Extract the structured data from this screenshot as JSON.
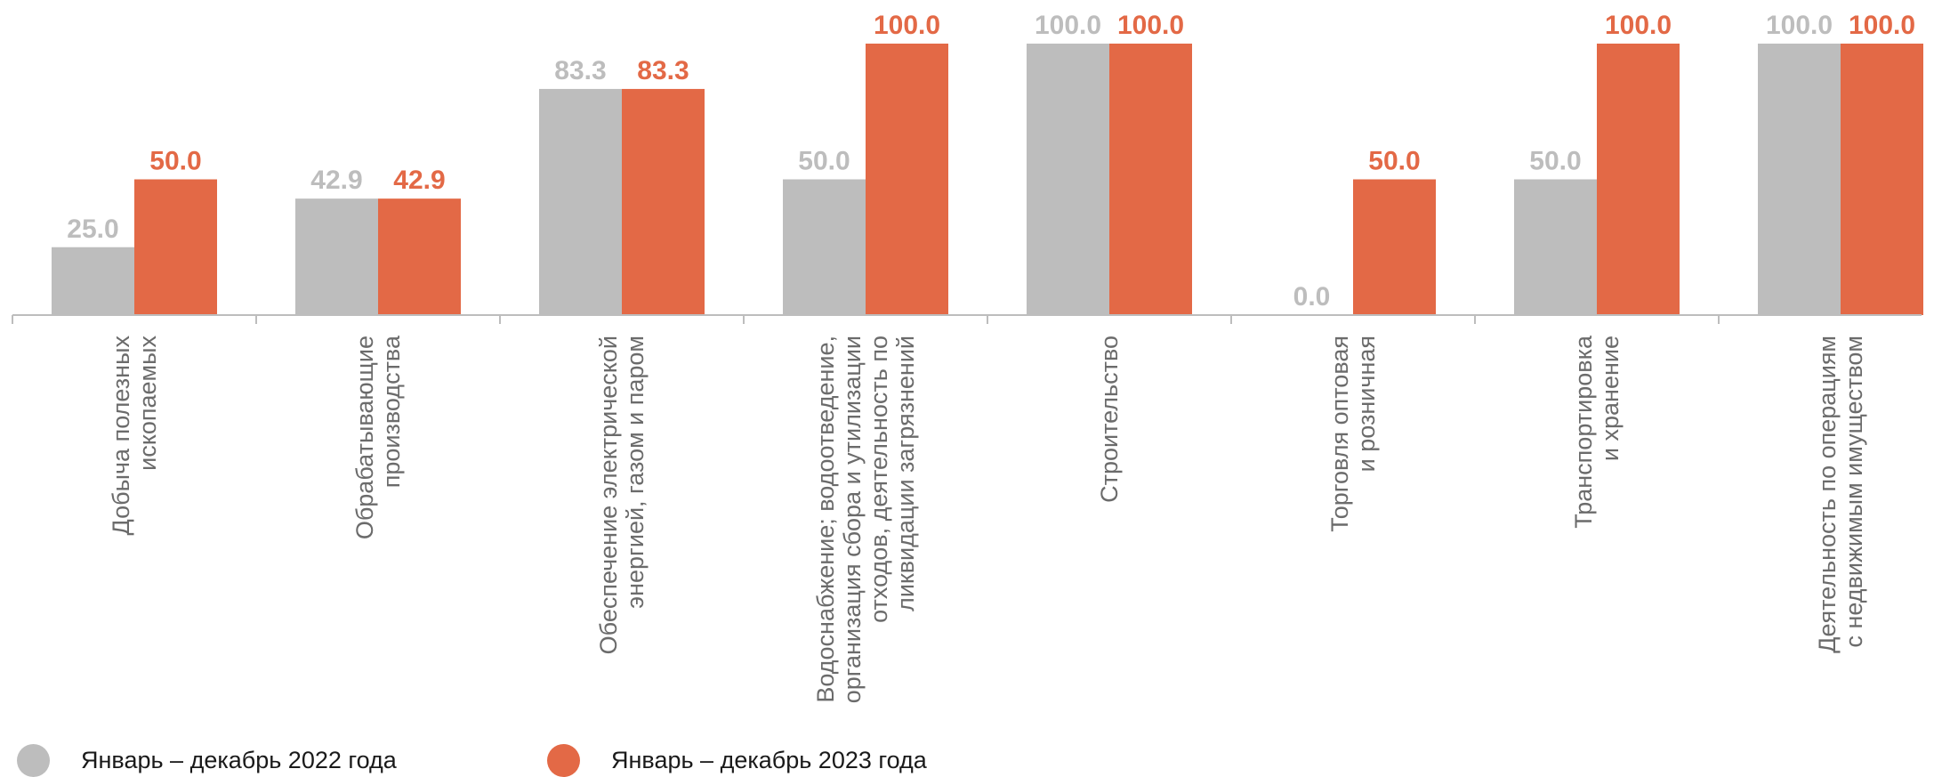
{
  "colors": {
    "series_2022": "#bdbdbd",
    "series_2023": "#e36946",
    "axis": "#bdbdbd",
    "category_text": "#6b6b6b"
  },
  "legend": {
    "items": [
      {
        "label": "Январь – декабрь 2022 года",
        "color": "#bdbdbd"
      },
      {
        "label": "Январь – декабрь 2023 года",
        "color": "#e36946"
      }
    ]
  },
  "chart_data": {
    "type": "bar",
    "categories": [
      [
        "Добыча полезных",
        "ископаемых"
      ],
      [
        "Обрабатывающие",
        "производства"
      ],
      [
        "Обеспечение электрической",
        "энергией, газом и паром"
      ],
      [
        "Водоснабжение; водоотведение,",
        "организация сбора и утилизации",
        "отходов, деятельность по",
        "ликвидации загрязнений"
      ],
      [
        "Строительство"
      ],
      [
        "Торговля оптовая",
        "и розничная"
      ],
      [
        "Транспортировка",
        "и хранение"
      ],
      [
        "Деятельность по операциям",
        "с недвижимым имуществом"
      ]
    ],
    "series": [
      {
        "name": "Январь – декабрь 2022 года",
        "values": [
          25.0,
          42.9,
          83.3,
          50.0,
          100.0,
          0.0,
          50.0,
          100.0
        ],
        "labels": [
          "25.0",
          "42.9",
          "83.3",
          "50.0",
          "100.0",
          "0.0",
          "50.0",
          "100.0"
        ],
        "color": "#bdbdbd"
      },
      {
        "name": "Январь – декабрь 2023 года",
        "values": [
          50.0,
          42.9,
          83.3,
          100.0,
          100.0,
          50.0,
          100.0,
          100.0
        ],
        "labels": [
          "50.0",
          "42.9",
          "83.3",
          "100.0",
          "100.0",
          "50.0",
          "100.0",
          "100.0"
        ],
        "color": "#e36946"
      }
    ],
    "ylim": [
      0,
      100
    ],
    "grid": false,
    "legend_position": "bottom-left"
  }
}
